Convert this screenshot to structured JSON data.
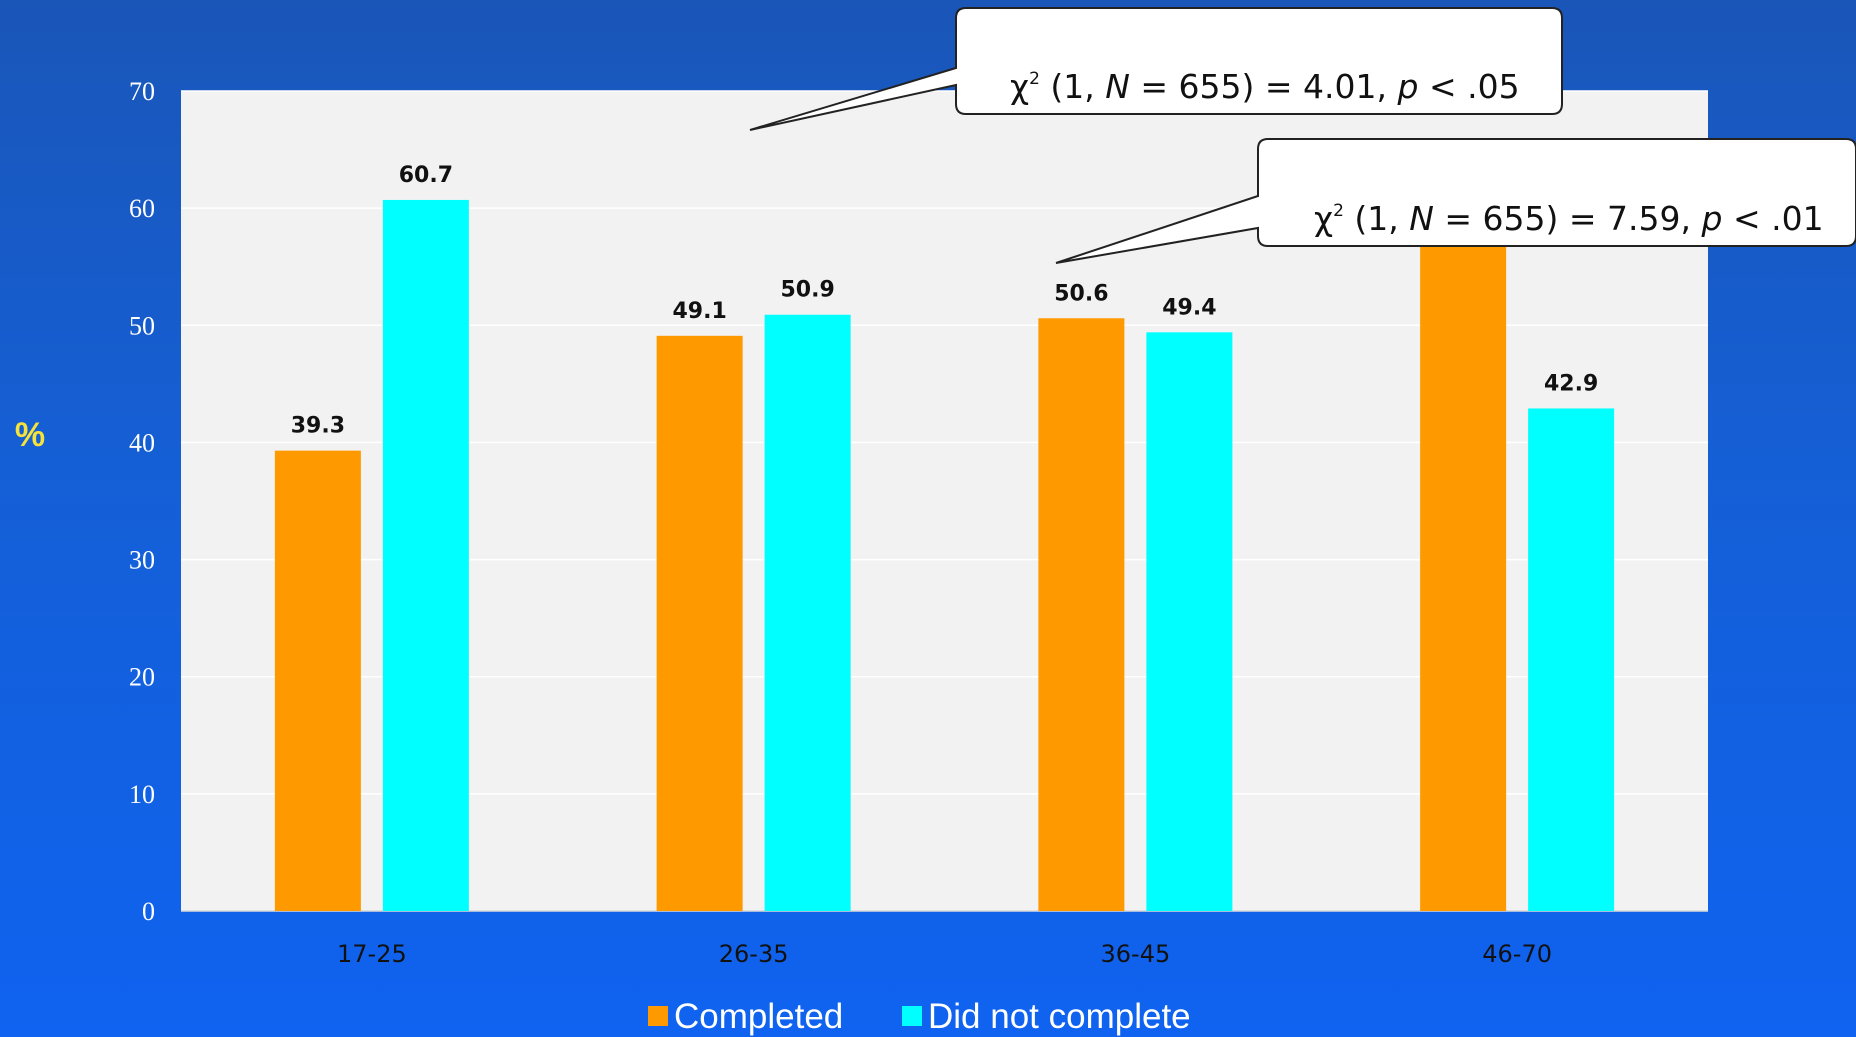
{
  "chart_data": {
    "type": "bar",
    "categories": [
      "17-25",
      "26-35",
      "36-45",
      "46-70"
    ],
    "series": [
      {
        "name": "Completed",
        "values": [
          39.3,
          49.1,
          50.6,
          57.1
        ],
        "color": "#ff9900",
        "labels": [
          "39.3",
          "49.1",
          "50.6",
          ""
        ]
      },
      {
        "name": "Did not complete",
        "values": [
          60.7,
          50.9,
          49.4,
          42.9
        ],
        "color": "#00ffff",
        "labels": [
          "60.7",
          "50.9",
          "49.4",
          "42.9"
        ]
      }
    ],
    "ylabel": "%",
    "ylim": [
      0,
      70
    ],
    "yticks": [
      0,
      10,
      20,
      30,
      40,
      50,
      60,
      70
    ],
    "grid": true,
    "legend_position": "bottom",
    "annotations": [
      {
        "chi": "χ",
        "sup": "2",
        "pre": " (1, ",
        "n_var": "N",
        "mid": " = 655) = 4.01, ",
        "p_var": "p",
        "post": " < .05"
      },
      {
        "chi": "χ",
        "sup": "2",
        "pre": " (1, ",
        "n_var": "N",
        "mid": " = 655) = 7.59, ",
        "p_var": "p",
        "post": " < .01"
      }
    ]
  }
}
